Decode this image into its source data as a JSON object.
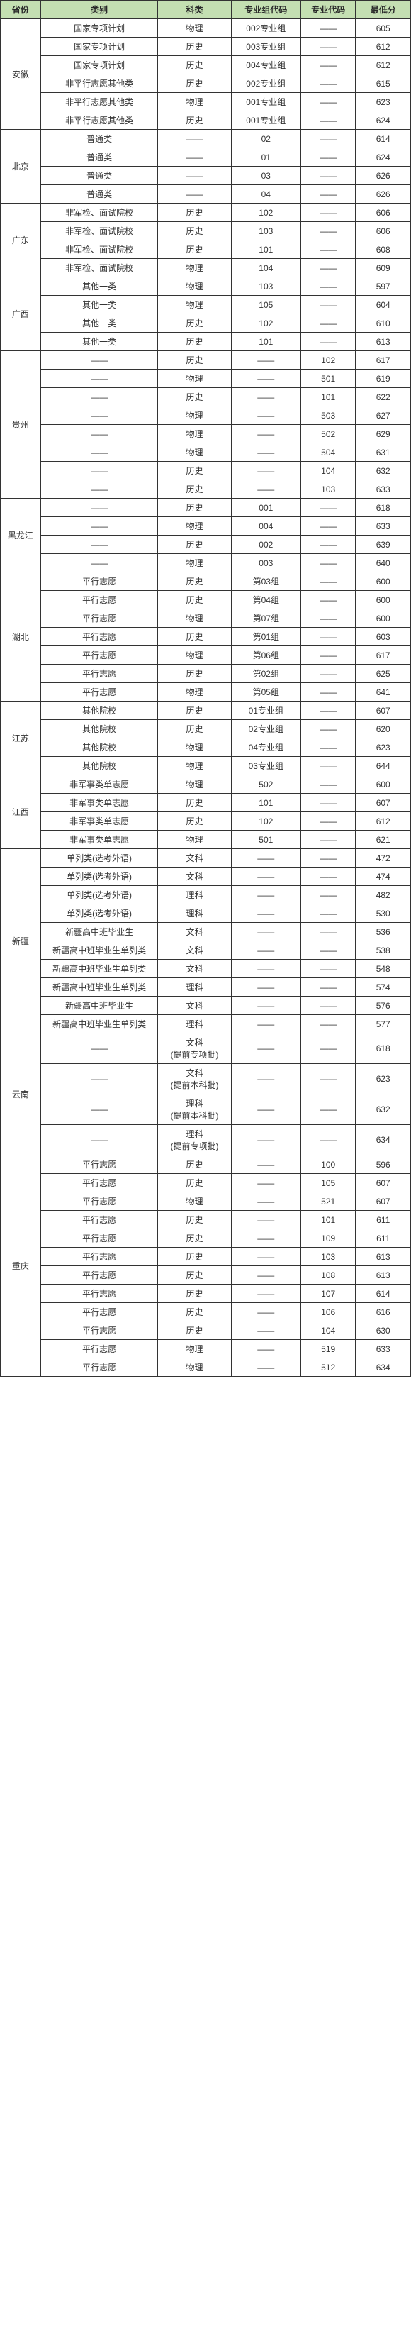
{
  "headers": {
    "province": "省份",
    "category": "类别",
    "subject": "科类",
    "group": "专业组代码",
    "major": "专业代码",
    "score": "最低分"
  },
  "provinces": [
    {
      "name": "安徽",
      "rows": [
        {
          "category": "国家专项计划",
          "subject": "物理",
          "group": "002专业组",
          "major": "——",
          "score": "605"
        },
        {
          "category": "国家专项计划",
          "subject": "历史",
          "group": "003专业组",
          "major": "——",
          "score": "612"
        },
        {
          "category": "国家专项计划",
          "subject": "历史",
          "group": "004专业组",
          "major": "——",
          "score": "612"
        },
        {
          "category": "非平行志愿其他类",
          "subject": "历史",
          "group": "002专业组",
          "major": "——",
          "score": "615"
        },
        {
          "category": "非平行志愿其他类",
          "subject": "物理",
          "group": "001专业组",
          "major": "——",
          "score": "623"
        },
        {
          "category": "非平行志愿其他类",
          "subject": "历史",
          "group": "001专业组",
          "major": "——",
          "score": "624"
        }
      ]
    },
    {
      "name": "北京",
      "rows": [
        {
          "category": "普通类",
          "subject": "——",
          "group": "02",
          "major": "——",
          "score": "614"
        },
        {
          "category": "普通类",
          "subject": "——",
          "group": "01",
          "major": "——",
          "score": "624"
        },
        {
          "category": "普通类",
          "subject": "——",
          "group": "03",
          "major": "——",
          "score": "626"
        },
        {
          "category": "普通类",
          "subject": "——",
          "group": "04",
          "major": "——",
          "score": "626"
        }
      ]
    },
    {
      "name": "广东",
      "rows": [
        {
          "category": "非军检、面试院校",
          "subject": "历史",
          "group": "102",
          "major": "——",
          "score": "606"
        },
        {
          "category": "非军检、面试院校",
          "subject": "历史",
          "group": "103",
          "major": "——",
          "score": "606"
        },
        {
          "category": "非军检、面试院校",
          "subject": "历史",
          "group": "101",
          "major": "——",
          "score": "608"
        },
        {
          "category": "非军检、面试院校",
          "subject": "物理",
          "group": "104",
          "major": "——",
          "score": "609"
        }
      ]
    },
    {
      "name": "广西",
      "rows": [
        {
          "category": "其他一类",
          "subject": "物理",
          "group": "103",
          "major": "——",
          "score": "597"
        },
        {
          "category": "其他一类",
          "subject": "物理",
          "group": "105",
          "major": "——",
          "score": "604"
        },
        {
          "category": "其他一类",
          "subject": "历史",
          "group": "102",
          "major": "——",
          "score": "610"
        },
        {
          "category": "其他一类",
          "subject": "历史",
          "group": "101",
          "major": "——",
          "score": "613"
        }
      ]
    },
    {
      "name": "贵州",
      "rows": [
        {
          "category": "——",
          "subject": "历史",
          "group": "——",
          "major": "102",
          "score": "617"
        },
        {
          "category": "——",
          "subject": "物理",
          "group": "——",
          "major": "501",
          "score": "619"
        },
        {
          "category": "——",
          "subject": "历史",
          "group": "——",
          "major": "101",
          "score": "622"
        },
        {
          "category": "——",
          "subject": "物理",
          "group": "——",
          "major": "503",
          "score": "627"
        },
        {
          "category": "——",
          "subject": "物理",
          "group": "——",
          "major": "502",
          "score": "629"
        },
        {
          "category": "——",
          "subject": "物理",
          "group": "——",
          "major": "504",
          "score": "631"
        },
        {
          "category": "——",
          "subject": "历史",
          "group": "——",
          "major": "104",
          "score": "632"
        },
        {
          "category": "——",
          "subject": "历史",
          "group": "——",
          "major": "103",
          "score": "633"
        }
      ]
    },
    {
      "name": "黑龙江",
      "rows": [
        {
          "category": "——",
          "subject": "历史",
          "group": "001",
          "major": "——",
          "score": "618"
        },
        {
          "category": "——",
          "subject": "物理",
          "group": "004",
          "major": "——",
          "score": "633"
        },
        {
          "category": "——",
          "subject": "历史",
          "group": "002",
          "major": "——",
          "score": "639"
        },
        {
          "category": "——",
          "subject": "物理",
          "group": "003",
          "major": "——",
          "score": "640"
        }
      ]
    },
    {
      "name": "湖北",
      "rows": [
        {
          "category": "平行志愿",
          "subject": "历史",
          "group": "第03组",
          "major": "——",
          "score": "600"
        },
        {
          "category": "平行志愿",
          "subject": "历史",
          "group": "第04组",
          "major": "——",
          "score": "600"
        },
        {
          "category": "平行志愿",
          "subject": "物理",
          "group": "第07组",
          "major": "——",
          "score": "600"
        },
        {
          "category": "平行志愿",
          "subject": "历史",
          "group": "第01组",
          "major": "——",
          "score": "603"
        },
        {
          "category": "平行志愿",
          "subject": "物理",
          "group": "第06组",
          "major": "——",
          "score": "617"
        },
        {
          "category": "平行志愿",
          "subject": "历史",
          "group": "第02组",
          "major": "——",
          "score": "625"
        },
        {
          "category": "平行志愿",
          "subject": "物理",
          "group": "第05组",
          "major": "——",
          "score": "641"
        }
      ]
    },
    {
      "name": "江苏",
      "rows": [
        {
          "category": "其他院校",
          "subject": "历史",
          "group": "01专业组",
          "major": "——",
          "score": "607"
        },
        {
          "category": "其他院校",
          "subject": "历史",
          "group": "02专业组",
          "major": "——",
          "score": "620"
        },
        {
          "category": "其他院校",
          "subject": "物理",
          "group": "04专业组",
          "major": "——",
          "score": "623"
        },
        {
          "category": "其他院校",
          "subject": "物理",
          "group": "03专业组",
          "major": "——",
          "score": "644"
        }
      ]
    },
    {
      "name": "江西",
      "rows": [
        {
          "category": "非军事类单志愿",
          "subject": "物理",
          "group": "502",
          "major": "——",
          "score": "600"
        },
        {
          "category": "非军事类单志愿",
          "subject": "历史",
          "group": "101",
          "major": "——",
          "score": "607"
        },
        {
          "category": "非军事类单志愿",
          "subject": "历史",
          "group": "102",
          "major": "——",
          "score": "612"
        },
        {
          "category": "非军事类单志愿",
          "subject": "物理",
          "group": "501",
          "major": "——",
          "score": "621"
        }
      ]
    },
    {
      "name": "新疆",
      "rows": [
        {
          "category": "单列类(选考外语)",
          "subject": "文科",
          "group": "——",
          "major": "——",
          "score": "472"
        },
        {
          "category": "单列类(选考外语)",
          "subject": "文科",
          "group": "——",
          "major": "——",
          "score": "474"
        },
        {
          "category": "单列类(选考外语)",
          "subject": "理科",
          "group": "——",
          "major": "——",
          "score": "482"
        },
        {
          "category": "单列类(选考外语)",
          "subject": "理科",
          "group": "——",
          "major": "——",
          "score": "530"
        },
        {
          "category": "新疆高中班毕业生",
          "subject": "文科",
          "group": "——",
          "major": "——",
          "score": "536"
        },
        {
          "category": "新疆高中班毕业生单列类",
          "subject": "文科",
          "group": "——",
          "major": "——",
          "score": "538"
        },
        {
          "category": "新疆高中班毕业生单列类",
          "subject": "文科",
          "group": "——",
          "major": "——",
          "score": "548"
        },
        {
          "category": "新疆高中班毕业生单列类",
          "subject": "理科",
          "group": "——",
          "major": "——",
          "score": "574"
        },
        {
          "category": "新疆高中班毕业生",
          "subject": "文科",
          "group": "——",
          "major": "——",
          "score": "576"
        },
        {
          "category": "新疆高中班毕业生单列类",
          "subject": "理科",
          "group": "——",
          "major": "——",
          "score": "577"
        }
      ]
    },
    {
      "name": "云南",
      "rows": [
        {
          "category": "——",
          "subject": "文科\n(提前专项批)",
          "group": "——",
          "major": "——",
          "score": "618"
        },
        {
          "category": "——",
          "subject": "文科\n(提前本科批)",
          "group": "——",
          "major": "——",
          "score": "623"
        },
        {
          "category": "——",
          "subject": "理科\n(提前本科批)",
          "group": "——",
          "major": "——",
          "score": "632"
        },
        {
          "category": "——",
          "subject": "理科\n(提前专项批)",
          "group": "——",
          "major": "——",
          "score": "634"
        }
      ]
    },
    {
      "name": "重庆",
      "rows": [
        {
          "category": "平行志愿",
          "subject": "历史",
          "group": "——",
          "major": "100",
          "score": "596"
        },
        {
          "category": "平行志愿",
          "subject": "历史",
          "group": "——",
          "major": "105",
          "score": "607"
        },
        {
          "category": "平行志愿",
          "subject": "物理",
          "group": "——",
          "major": "521",
          "score": "607"
        },
        {
          "category": "平行志愿",
          "subject": "历史",
          "group": "——",
          "major": "101",
          "score": "611"
        },
        {
          "category": "平行志愿",
          "subject": "历史",
          "group": "——",
          "major": "109",
          "score": "611"
        },
        {
          "category": "平行志愿",
          "subject": "历史",
          "group": "——",
          "major": "103",
          "score": "613"
        },
        {
          "category": "平行志愿",
          "subject": "历史",
          "group": "——",
          "major": "108",
          "score": "613"
        },
        {
          "category": "平行志愿",
          "subject": "历史",
          "group": "——",
          "major": "107",
          "score": "614"
        },
        {
          "category": "平行志愿",
          "subject": "历史",
          "group": "——",
          "major": "106",
          "score": "616"
        },
        {
          "category": "平行志愿",
          "subject": "历史",
          "group": "——",
          "major": "104",
          "score": "630"
        },
        {
          "category": "平行志愿",
          "subject": "物理",
          "group": "——",
          "major": "519",
          "score": "633"
        },
        {
          "category": "平行志愿",
          "subject": "物理",
          "group": "——",
          "major": "512",
          "score": "634"
        }
      ]
    }
  ]
}
